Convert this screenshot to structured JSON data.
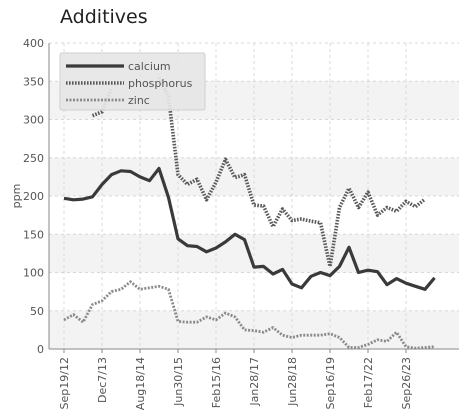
{
  "chart_data": {
    "type": "line",
    "title": "Additives",
    "xlabel": "",
    "ylabel": "ppm",
    "ylim": [
      0,
      400
    ],
    "yticks": [
      0,
      50,
      100,
      150,
      200,
      250,
      300,
      350,
      400
    ],
    "x_tick_labels": [
      "Sep19/12",
      "Dec7/13",
      "Aug18/14",
      "Jun30/15",
      "Feb15/16",
      "Jan28/17",
      "Jun28/18",
      "Sep16/19",
      "Feb17/22",
      "Sep26/23"
    ],
    "x_tick_indices": [
      0,
      4,
      8,
      12,
      16,
      20,
      24,
      28,
      32,
      36
    ],
    "n_samples": 41,
    "grid": true,
    "legend_position": "top-left",
    "series": [
      {
        "name": "calcium",
        "style": "solid",
        "values": [
          197,
          195,
          196,
          199,
          215,
          228,
          233,
          232,
          225,
          220,
          236,
          198,
          144,
          135,
          134,
          127,
          132,
          140,
          150,
          143,
          107,
          108,
          98,
          104,
          85,
          80,
          95,
          100,
          96,
          108,
          133,
          100,
          103,
          101,
          84,
          92,
          86,
          82,
          78,
          93,
          null
        ]
      },
      {
        "name": "phosphorus",
        "style": "dotted",
        "values": [
          null,
          null,
          null,
          305,
          310,
          340,
          null,
          null,
          null,
          null,
          355,
          330,
          228,
          215,
          222,
          195,
          218,
          248,
          224,
          228,
          188,
          187,
          160,
          183,
          168,
          170,
          167,
          165,
          108,
          185,
          210,
          185,
          205,
          175,
          185,
          180,
          193,
          186,
          196,
          null,
          null
        ]
      },
      {
        "name": "zinc",
        "style": "dashed",
        "values": [
          38,
          45,
          35,
          58,
          63,
          75,
          78,
          88,
          78,
          80,
          82,
          78,
          36,
          35,
          35,
          42,
          38,
          47,
          42,
          25,
          24,
          22,
          28,
          18,
          15,
          18,
          18,
          18,
          20,
          15,
          2,
          2,
          6,
          12,
          10,
          22,
          3,
          1,
          2,
          3,
          null
        ]
      }
    ]
  }
}
